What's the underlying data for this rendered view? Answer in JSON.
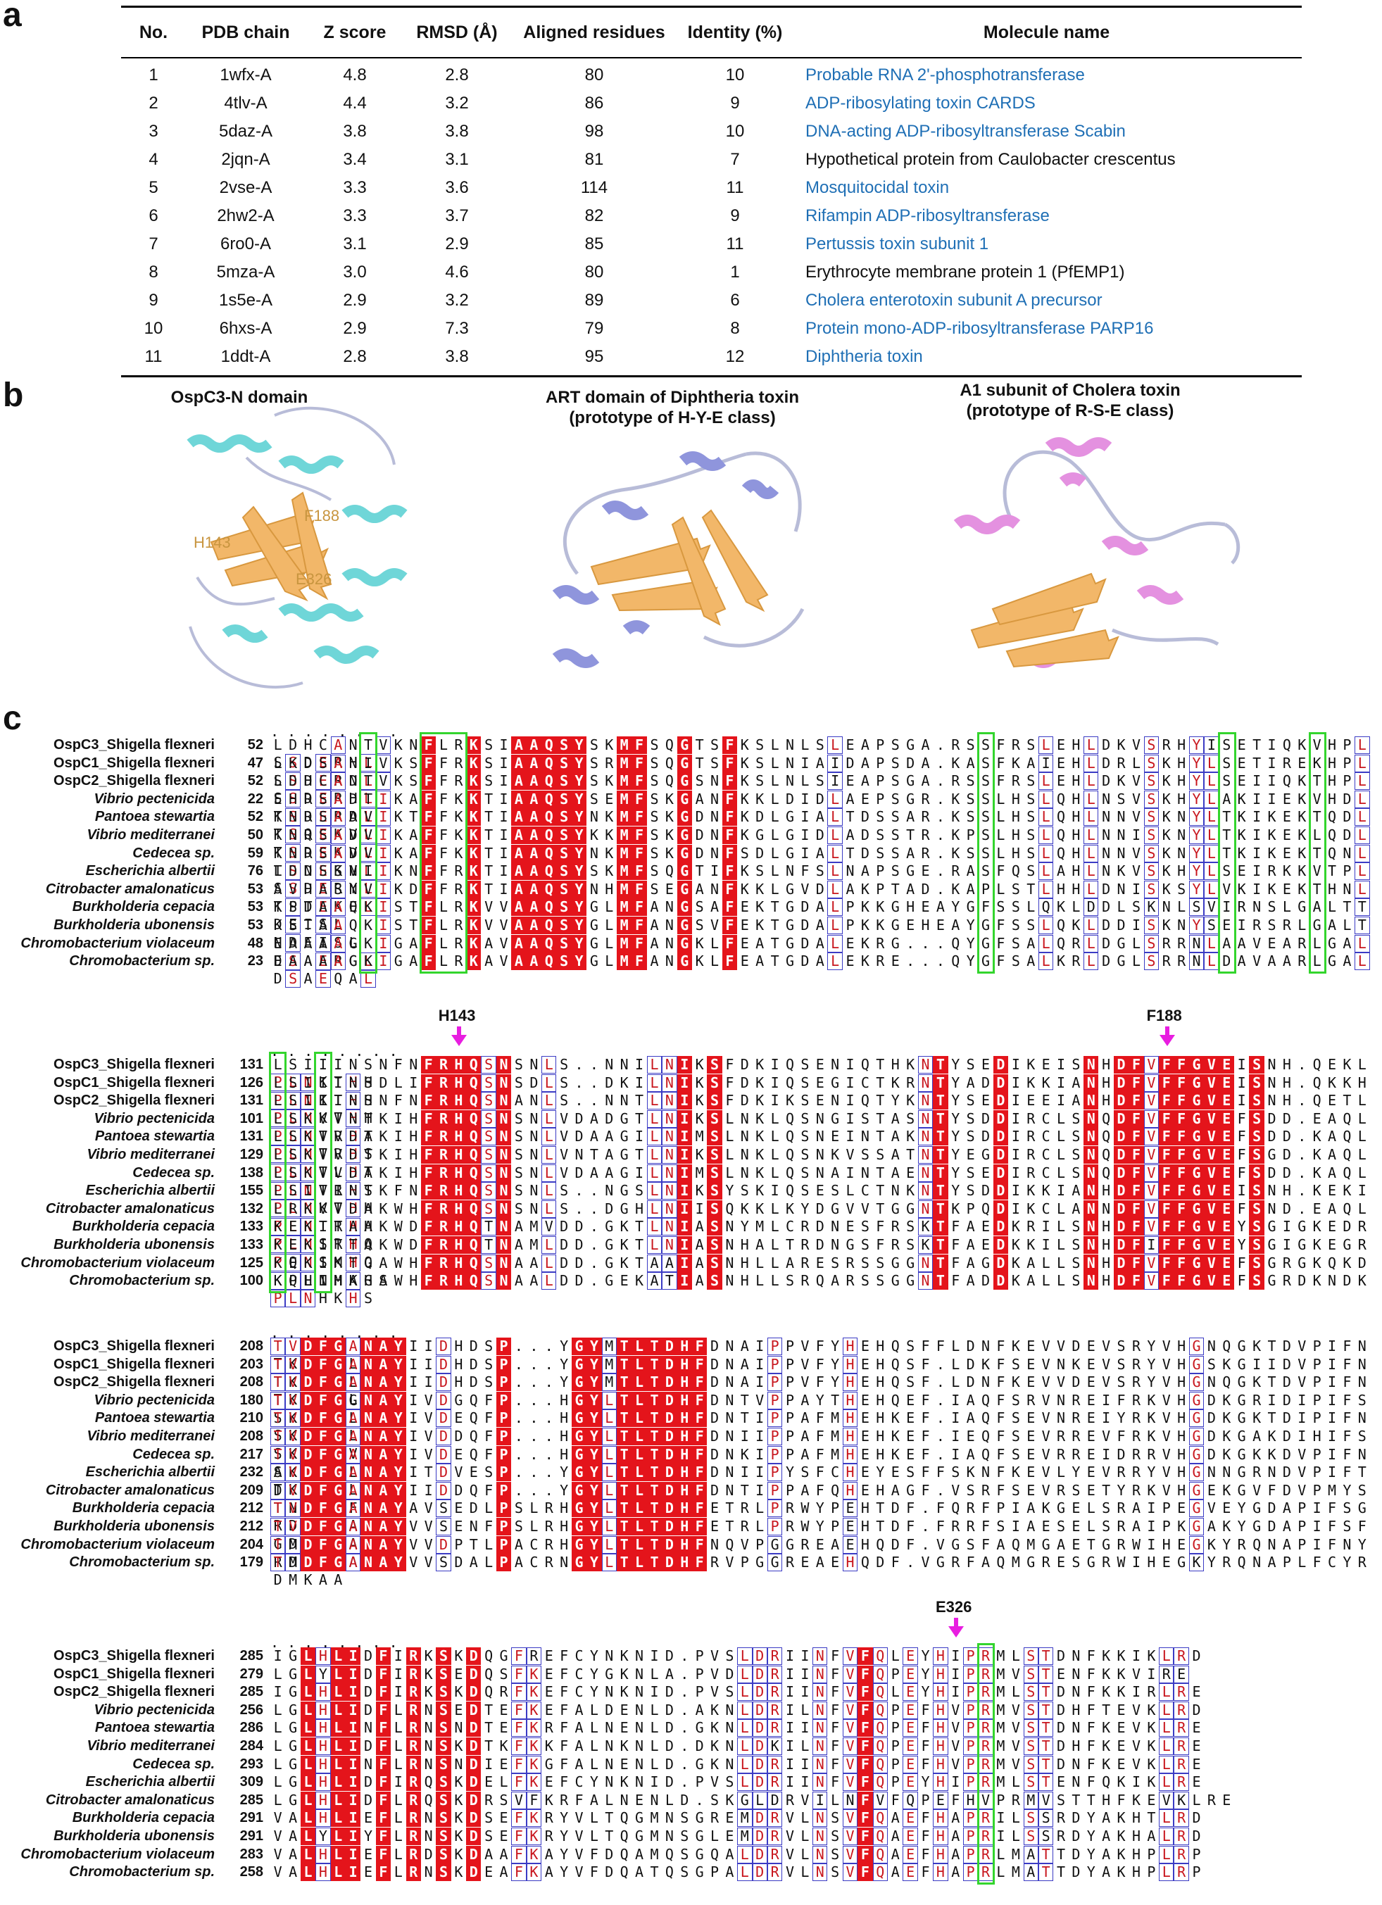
{
  "panels": {
    "a": "a",
    "b": "b",
    "c": "c"
  },
  "table": {
    "headers": [
      "No.",
      "PDB chain",
      "Z score",
      "RMSD (Å)",
      "Aligned residues",
      "Identity (%)",
      "Molecule name"
    ],
    "rows": [
      {
        "no": "1",
        "pdb": "1wfx-A",
        "z": "4.8",
        "rmsd": "2.8",
        "aligned": "80",
        "identity": "10",
        "name": "Probable RNA 2'-phosphotransferase",
        "link": true
      },
      {
        "no": "2",
        "pdb": "4tlv-A",
        "z": "4.4",
        "rmsd": "3.2",
        "aligned": "86",
        "identity": "9",
        "name": "ADP-ribosylating toxin CARDS",
        "link": true
      },
      {
        "no": "3",
        "pdb": "5daz-A",
        "z": "3.8",
        "rmsd": "3.8",
        "aligned": "98",
        "identity": "10",
        "name": "DNA-acting ADP-ribosyltransferase Scabin",
        "link": true
      },
      {
        "no": "4",
        "pdb": "2jqn-A",
        "z": "3.4",
        "rmsd": "3.1",
        "aligned": "81",
        "identity": "7",
        "name": "Hypothetical protein from Caulobacter crescentus",
        "link": false
      },
      {
        "no": "5",
        "pdb": "2vse-A",
        "z": "3.3",
        "rmsd": "3.6",
        "aligned": "114",
        "identity": "11",
        "name": "Mosquitocidal toxin",
        "link": true
      },
      {
        "no": "6",
        "pdb": "2hw2-A",
        "z": "3.3",
        "rmsd": "3.7",
        "aligned": "82",
        "identity": "9",
        "name": "Rifampin ADP-ribosyltransferase",
        "link": true
      },
      {
        "no": "7",
        "pdb": "6ro0-A",
        "z": "3.1",
        "rmsd": "2.9",
        "aligned": "85",
        "identity": "11",
        "name": "Pertussis toxin subunit 1",
        "link": true
      },
      {
        "no": "8",
        "pdb": "5mza-A",
        "z": "3.0",
        "rmsd": "4.6",
        "aligned": "80",
        "identity": "1",
        "name": "Erythrocyte membrane protein 1 (PfEMP1)",
        "link": false
      },
      {
        "no": "9",
        "pdb": "1s5e-A",
        "z": "2.9",
        "rmsd": "3.2",
        "aligned": "89",
        "identity": "6",
        "name": "Cholera enterotoxin subunit A precursor",
        "link": true
      },
      {
        "no": "10",
        "pdb": "6hxs-A",
        "z": "2.9",
        "rmsd": "7.3",
        "aligned": "79",
        "identity": "8",
        "name": "Protein mono-ADP-ribosyltransferase PARP16",
        "link": true
      },
      {
        "no": "11",
        "pdb": "1ddt-A",
        "z": "2.8",
        "rmsd": "3.8",
        "aligned": "95",
        "identity": "12",
        "name": "Diphtheria toxin",
        "link": true
      }
    ]
  },
  "structures": [
    {
      "title_lines": [
        "OspC3-N domain"
      ],
      "labels": [
        "H143",
        "F188",
        "E326"
      ]
    },
    {
      "title_lines": [
        "ART domain of Diphtheria toxin",
        "(prototype of H-Y-E class)"
      ],
      "labels": []
    },
    {
      "title_lines": [
        "A1 subunit  of Cholera toxin",
        "(prototype of R-S-E class)"
      ],
      "labels": []
    }
  ],
  "colors": {
    "identical_bg": "#e4141b",
    "similar_text": "#c8161d",
    "box": "#3b3bc4",
    "highlight": "#33d52d",
    "arrow": "#e81de0",
    "link": "#1f6fb5"
  },
  "alignment": {
    "species": [
      "OspC3_Shigella flexneri",
      "OspC1_Shigella flexneri",
      "OspC2_Shigella flexneri",
      "Vibrio pectenicida",
      "Pantoea stewartia",
      "Vibrio mediterranei",
      "Cedecea sp.",
      "Escherichia albertii",
      "Citrobacter amalonaticus",
      "Burkholderia cepacia",
      "Burkholderia ubonensis",
      "Chromobacterium violaceum",
      "Chromobacterium sp."
    ],
    "blocks": [
      {
        "positions": [
          "52",
          "47",
          "52",
          "22",
          "52",
          "50",
          "59",
          "76",
          "53",
          "53",
          "53",
          "48",
          "23"
        ],
        "seqs": [
          "LDHCANTVKNFLRKSIAAQSYSKMFSQGTSFKSLNLSLEAPSGA.RSSFRSLEHLDKVSRHYISETIQKVHPLSSDERHL",
          "LKDSANIVKSFFRKSIAAQSYSRMFSQGTSFKSLNIAIDAPSDA.KASFKAIEHLDRLSKHYLSETIREKHPLSSDERNL",
          "LDHCADTVKSFFRKSIAAQSYSKMFSQGSNFKSLNLSIEAPSGA.RSSFRSLEHLDKVSKHYLSEIIQKTHPLSSDERHL",
          "EHRSADTIKAFFKKTIAAQSYSEMFSKGANFKKLDIDLAEPSGR.KSSLHSLQHLNSVSKHYLAKIIEKVHDLTSDERAL",
          "KNRSADVIKTFFKKTIAAQSYNKMFSKGDNFKDLGIALTDSSAR.KSSLHSLQHLNNVSKNYLTKIKEKTQDLTSQEKVL",
          "KNRSADVIKAFFKKTIAAQSYKKMFSKGDNFKGLGIDLADSSTR.KPSLHSLQHLNNISKNYLTKIKEKLQDLTSDEKVL",
          "KNRSADVIKAFFKKTIAAQSYNKMFSKGDNFSDLGIALTDSSAR.KSSLHSLQHLNNVSKNYLTKIKEKTQNLTSDEKVL",
          "LDNSSNIIKNFFRKTIAAQSYSKMFSQGTIFKSLNFSLNAPSGE.RASFQSLAHLNKVSKHYLSEIRKKVTPLSSDERYL",
          "AVHASNVIKDFFRKTIAAQSYNHMFSEGANFKKLGVDLAKPTAD.KAPLSTLHHLDNISKSYLVKIKEKTHNLTPDEKEL",
          "KSTAAQKISTFLRKVVAAQSYGLMFANGSAFEKTGDALPKKGHEAYGFSSLQKLDDLSKNLSVIRNSLGALTTDEISL",
          "KSTAAQKISTFLRKVVAAQSYGLMFANGSVFEKTGDALPKKGEHEAYGFSSLQKLDDISKNYSEIRSRLGALTNDEISL",
          "EAAAAGKIGAFLRKAVAAQSYGLMFANGKLFEATGDALEKRG...QYGFSALQRLDGLSRRNLAAVEARLGALDSAERGL",
          "EAAAAGKIGAFLRKAVAAQSYGLMFANGKLFEATGDALEKRE...QYGFSALKRLDGLSRRNLDAVAARLGALDSAEQAL"
        ],
        "hl": [
          [
            6
          ],
          [
            10,
            11,
            12
          ],
          [
            47
          ],
          [
            63
          ],
          [
            69
          ]
        ],
        "marks": []
      },
      {
        "positions": [
          "131",
          "126",
          "131",
          "101",
          "131",
          "129",
          "138",
          "155",
          "132",
          "133",
          "133",
          "125",
          "100"
        ],
        "seqs": [
          "LSIIINSNFNFRHQSNSNLS..NNILNIKSFDKIQSENIQTHKNTYSEDIKEISNHDFVFFGVEISNH.QEKLPLNKTHH",
          "LSIIINSDLIFRHQSNSDLS..DKILNIKSFDKIQSEGICTKRNTYADDIKKIANHDFVFFGVEISNH.QKKHPLNKTHH",
          "LSIIINSNFNFRHQSNANLS..NNTLNIKSFDKIKSENIQTYKNTYSEDIEEIANHDFVFFGVEISNH.QETLPLNKTHH",
          "LSKVVNTKIHFRHQSNSNLVDADGTLNIKSLNKLQSNGISTASNTYSDDIRCLSNQDFVFFGVEFSDD.EAQLPLNTRHT",
          "LSKVVDAKIHFRHQSNSNLVDAAGILNIMSLNKLQSNEINTAKNTYSDDIRCLSNQDFVFFGVEFSDD.KAQLPLNTRHS",
          "LSKVVDTKIHFRHQSNSNLVNTAGTLNIKSLNKLQSNKVSSATNTYEGDIRCLSNQDFVFFGVEFSGD.KAQLPLNTLHT",
          "LSKVVDAKIHFRHQSNSNLVDAAGILNIMSLNKLQSNAINTAENTYSEDIRCLSNQDFVFFGVEFSDD.KAQLPLNTRHT",
          "LSIVINSKFNFRHQSNSNLS..NGSLNIKSYSKIQSESLCTNKNTYSDDIKKIANHDFVFFGVEISNH.KEKIPLNKTHH",
          "LRKVVDAKWHFRHQSNSNLS..DGHLNIISQKKLKYDGVVTGGNTKPQDIKCLANNDFVFFGVEFSND.EAQLPLNTRHH",
          "KEKITAAKWDFRHQTNAMVDD.GKTLNIASNYMLCRDNESFRSKTFAEDKRILSNHDFVFFGVEYSGIGKEDRPLNSRHQ",
          "KEKITTAKWDFRHQTNAMLDD.GKTLNIASNHALTRDNGSFRSKTFAEDKKILSNHDFIFFGVEYSGIGKEGRPQNSKHQ",
          "KEKIMTGAWHFRHQSNAALDD.GKTAAIASNHLLARESRSSGGNTFAGDKALLSNHDFVFFGVEFSGRGKQKDKPLNHKHS",
          "KQHIMAGAWHFRHQSNAALDD.GEKATIASNHLLSRQARSSGGNTFADDKALLSNHDFVFFGVEFSGRDKNDKPLNHKHS"
        ],
        "hl": [
          [
            0
          ],
          [
            3
          ]
        ],
        "marks": [
          {
            "label": "H143",
            "col": 12
          },
          {
            "label": "F188",
            "col": 59
          }
        ]
      },
      {
        "positions": [
          "208",
          "203",
          "208",
          "180",
          "210",
          "208",
          "217",
          "232",
          "209",
          "212",
          "212",
          "204",
          "179"
        ],
        "seqs": [
          "TVDFGANAYIIDHDSP...YGYMTLTDHFDNAIPPVFYHEHQSFFLDNFKEVVDEVSRYVHGNQGKTDVPIFNTKDMRLG",
          "TVDFGANAYIIDHDSP...YGYMTLTDHFDNAIPPVFYHEHQSF.LDKFSEVNKEVSRYVHGSKGIIDVPIFNTKDMKLG",
          "TVDFGANAYIIDHDSP...YGYMTLTDHFDNAIPPVFYHEHQSF.LDNFKEVVDEVSRYVHGNQGKTDVPIFNTKDMRLG",
          "TVDFGGNAYIVDGQFP...HGYLTLTDHFDNTVPPAYTHEHQEF.IAQFSRVNREIFRKVHGDKGRIDIPIFSSKDMKLG",
          "TVDFGANAYIVDEQFP...HGYLTLTDHFDNTIPPAFMHEHKEF.IAQFSEVNREIYRKVHGDKGKTDIPIFNSKDMKLG",
          "TVDFGANAYIVDDQFP...HGYLTLTDHFDNIIPPAFMHEHKEF.IEQFSEVRREVFRKVHGDKGAKDIHIFSSKDMKVG",
          "TVDFGANAYIVDEQFP...HGYLTLTDHFDNKIPPAFMHEHKEF.IAQFSEVRREIDRRVHGDKGKKDVPIFNSKDMKLG",
          "AVDFGANAYITDVESP...YGYLTLTDHFDNIIPYSFCHEYESFFSKNFKEVLYEVRRYVHGNNGRNDVPIFTTKDMRLG",
          "DVDFGANAYIIDDQFP...YGYLTLTDHFDNTIPPAFQHEHAGF.VSRFSEVRSETYRKVHGEKGVFDVPMYSTNDMKFA",
          "TVDFGANAYAVSEDLPSLRHGYLTLTDHFETRLPRWYPEHTDF.FQRFPIAKGELSRAIPEGVEYGDAPIFSGRDMKEA",
          "TVDFGANAYVVSENFPSLRHGYLTLTDHFETRLPRWYPEHTDF.FRRFSIAESELSRAIPKGAKYGDAPIFSFGDMKEA",
          "TMDFGANAYVVDPTLPACRHGYLTLTDHFNQVPGGREAEHQDF.VGSFAQMGAETGRWIHEGKYRQNAPIFNYRDMKAA",
          "TMDFGANAYVVSDALPACRNGYLTLTDHFRVPGGREAEHQDF.VGRFAQMGRESGRWIHEGKYRQNAPLFCYRDMKAA"
        ],
        "hl": [
          [
            74
          ],
          [
            77
          ]
        ],
        "marks": []
      },
      {
        "positions": [
          "285",
          "279",
          "285",
          "256",
          "286",
          "284",
          "293",
          "309",
          "285",
          "291",
          "291",
          "283",
          "258"
        ],
        "seqs": [
          "IGLHLIDFIRKSKDQGFREFCYNKNID.PVSLDRIINFVFQLEYHIPRMLSTDNFKKIKLRD",
          "LGLYLIDFIRKSEDQSFKEFCYGKNLA.PVDLDRIINFVFQPEYHIPRMVSTENFKKVIRE",
          "IGLHLIDFIRKSKDQRFKEFCYNKNID.PVSLDRIINFVFQLEYHIPRMLSTDNFKKIRLRE",
          "LGLHLIDFLRNSEDTEFKEFALDENLD.AKNLDRILNFVFQPEFHVPRMVSTDHFTEVKLRD",
          "LGLHLINFLRNSNDTEFKRFALNENLD.GKNLDRIINFVFQPEFHVPRMVSTDNFKEVKLRE",
          "LGLHLIDFLRNSKDTKFKKFALNKNLD.DKNLDKILNFVFQPEFHVPRMVSTDHFKEVKLRE",
          "LGLHLINFLRNSNDIEFKGFALNENLD.GKNLDRIINFVFQPEFHVPRMVSTDNFKEVKLRE",
          "LGLHLIDFIRQSKDELFKEFCYNKNID.PVSLDRIINFVFQPEYHIPRMLSTENFQKIKLRE",
          "LGLHLIDFLRQSKDRSVFKRFALNENLD.SKGLDRVILNFVFQPEFHVPRMVSTTHFKEVKLRE",
          "VALHLIEFLRNSKDSEFKRYVLTQGMNSGREMDRVLNSVFQAEFHAPRILSSRDYAKHTLRD",
          "VALYLIYFLRNSKDSEFKRYVLTQGMNSGLEMDRVLNSVFQAEFHAPRILSSRDYAKHALRD",
          "VALHLIEFLRDSKDAAFKAYVFDQAMQSGQALDRVLNSVFQAEFHAPRLMATTDYAKHPLRP",
          "VALHLIEFLRNSKDEAFKAYVFDQATQSGPALDRVLNSVFQAEFHAPRLMATTDYAKHPLRP"
        ],
        "hl": [
          [
            47
          ]
        ],
        "marks": [
          {
            "label": "E326",
            "col": 45
          }
        ]
      }
    ]
  }
}
